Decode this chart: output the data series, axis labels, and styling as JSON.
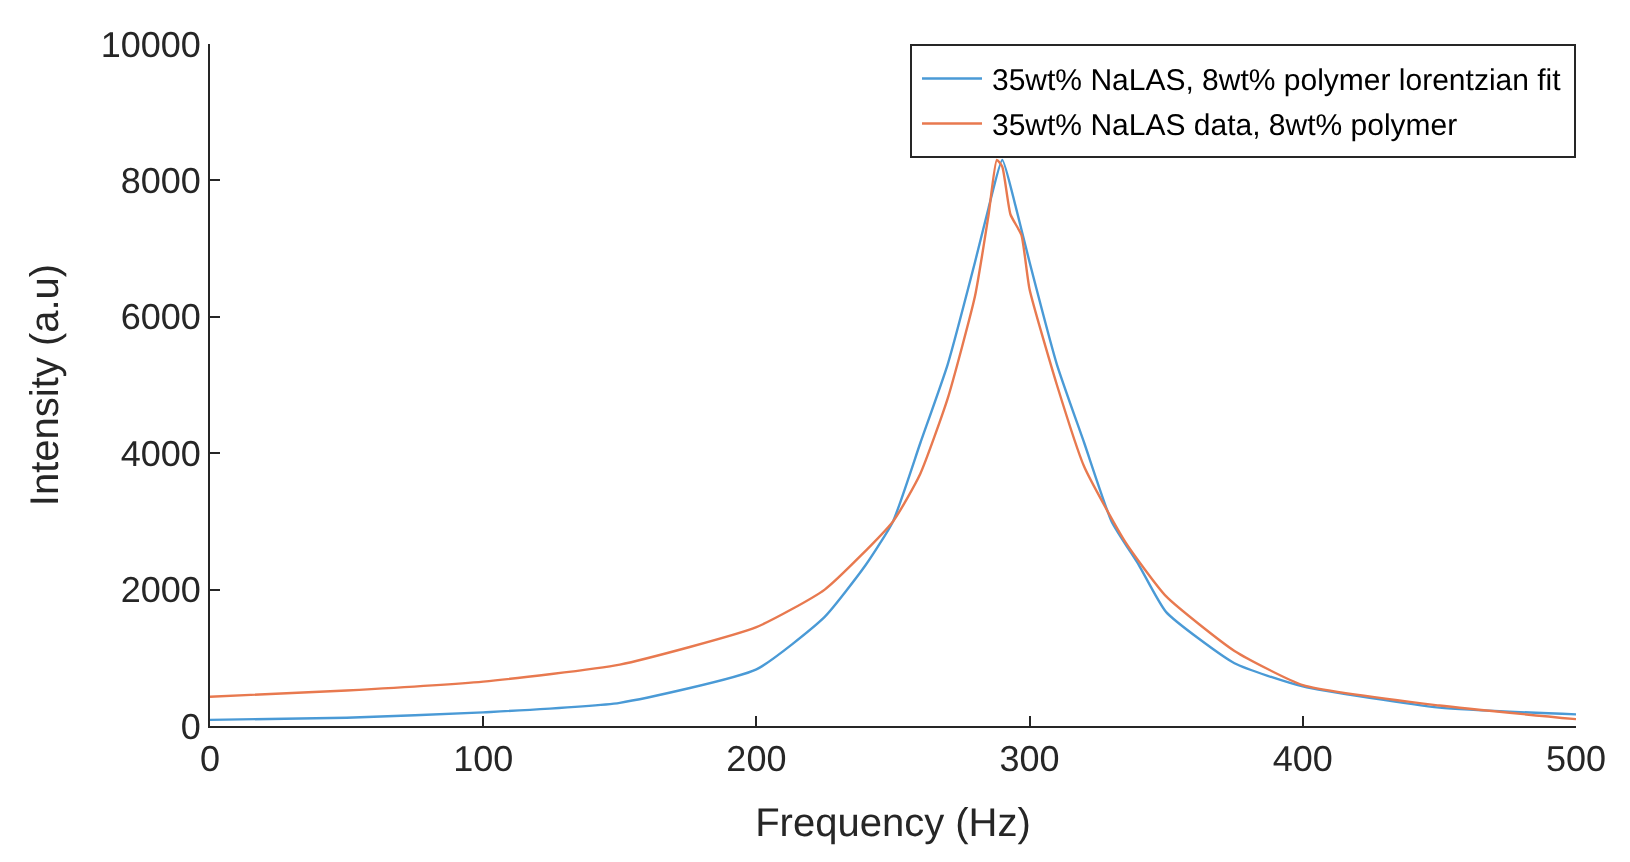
{
  "chart_data": {
    "type": "line",
    "xlabel": "Frequency (Hz)",
    "ylabel": "Intensity (a.u)",
    "xlim": [
      0,
      500
    ],
    "xticks": [
      0,
      100,
      200,
      300,
      400,
      500
    ],
    "ylim": [
      0,
      10000
    ],
    "yticks": [
      0,
      2000,
      4000,
      6000,
      8000,
      10000
    ],
    "legend": "top right",
    "marker": "none",
    "line_style": "solid",
    "series": [
      {
        "name": "35wt% NaLAS, 8wt% polymer lorentzian fit",
        "color": "#4a9ad6",
        "x": [
          0,
          50,
          100,
          150,
          200,
          225,
          240,
          250,
          260,
          270,
          280,
          285,
          290,
          295,
          300,
          310,
          320,
          330,
          340,
          350,
          375,
          400,
          450,
          500
        ],
        "values": [
          90,
          120,
          200,
          340,
          830,
          1600,
          2360,
          3000,
          4150,
          5300,
          6800,
          7600,
          8300,
          7600,
          6800,
          5300,
          4150,
          3000,
          2360,
          1670,
          920,
          580,
          270,
          170
        ]
      },
      {
        "name": "35wt% NaLAS data, 8wt% polymer",
        "color": "#e8794f",
        "x": [
          0,
          50,
          100,
          150,
          200,
          225,
          250,
          260,
          270,
          280,
          285,
          288,
          290,
          293,
          297,
          300,
          310,
          320,
          335,
          350,
          375,
          400,
          450,
          500
        ],
        "values": [
          430,
          520,
          650,
          900,
          1450,
          2000,
          3000,
          3700,
          4800,
          6300,
          7500,
          8300,
          8200,
          7500,
          7200,
          6400,
          5000,
          3800,
          2700,
          1900,
          1100,
          600,
          300,
          100
        ]
      }
    ]
  }
}
